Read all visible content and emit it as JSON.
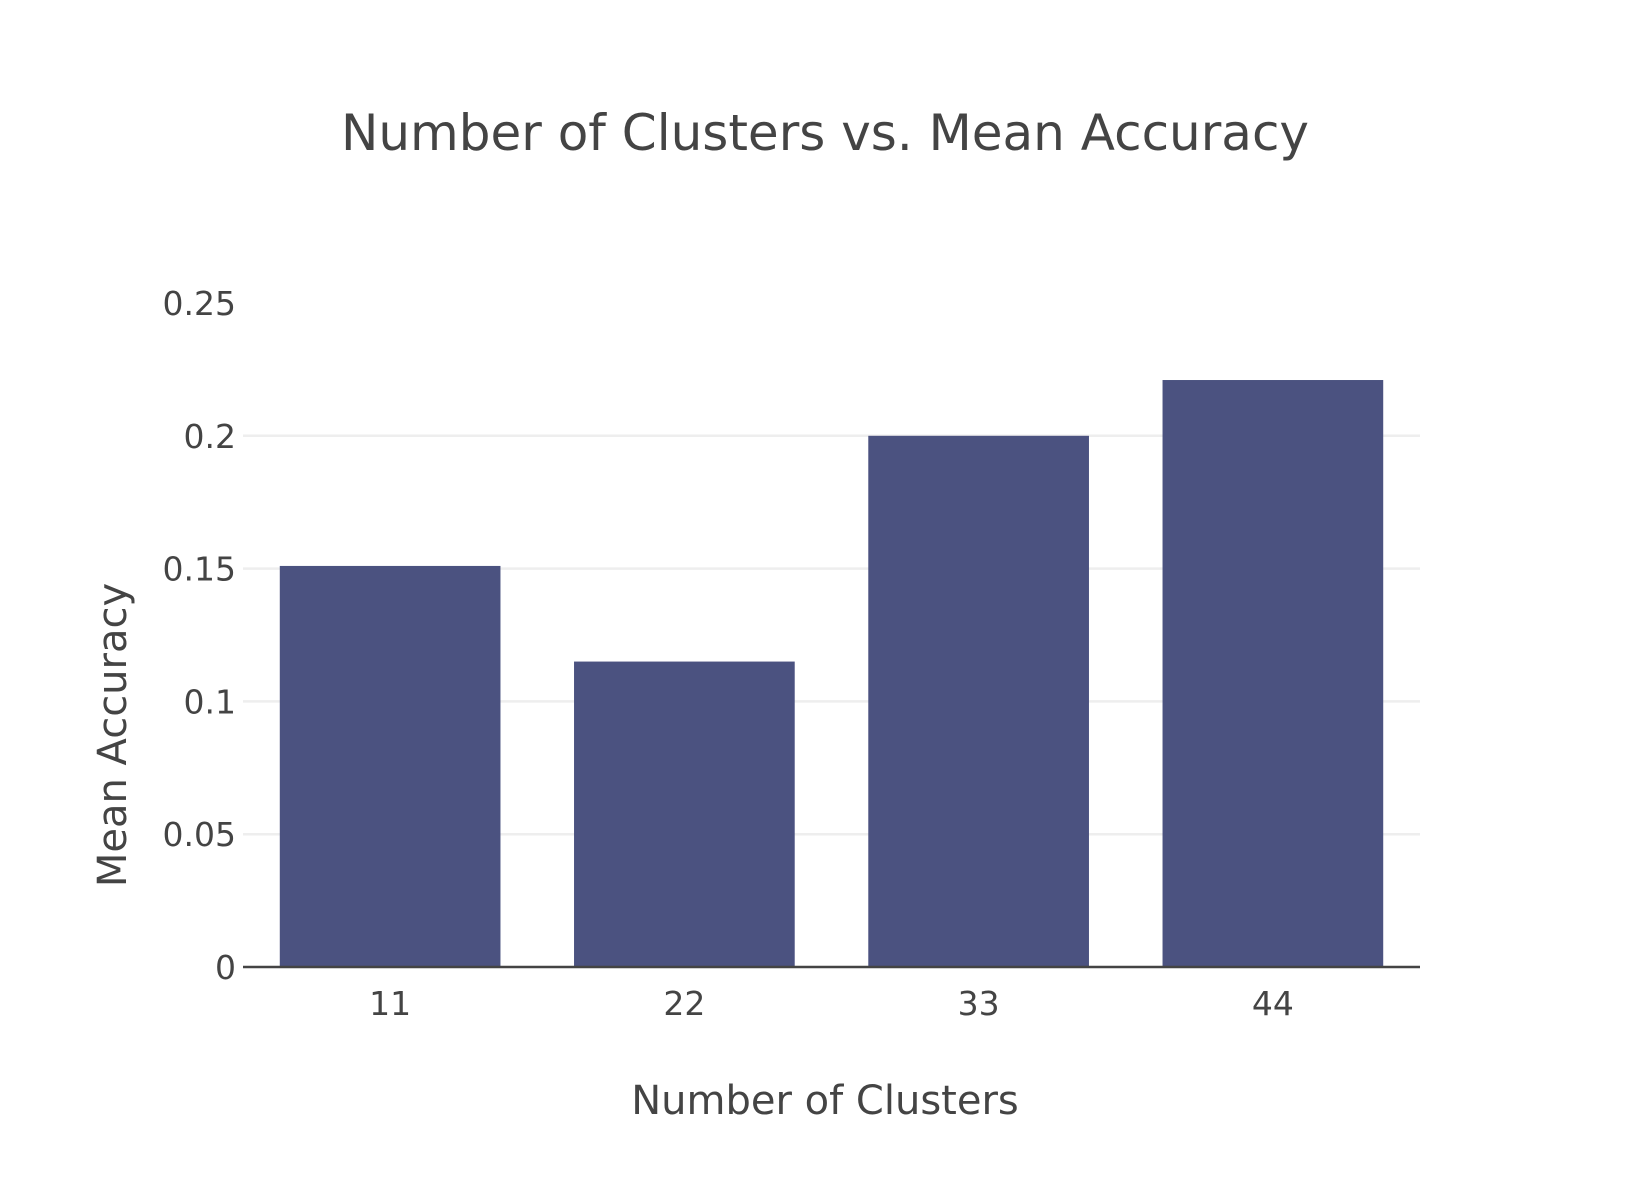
{
  "chart_data": {
    "type": "bar",
    "title": "Number of Clusters vs. Mean Accuracy",
    "xlabel": "Number of Clusters",
    "ylabel": "Mean Accuracy",
    "categories": [
      "11",
      "22",
      "33",
      "44"
    ],
    "values": [
      0.151,
      0.115,
      0.2,
      0.221
    ],
    "ylim": [
      0,
      0.25
    ],
    "yticks": [
      0,
      0.05,
      0.1,
      0.15,
      0.2,
      0.25
    ],
    "ytick_labels": [
      "0",
      "0.05",
      "0.1",
      "0.15",
      "0.2",
      "0.25"
    ],
    "grid": true,
    "legend": false,
    "colors": {
      "bar": "#4b5280",
      "grid": "#eeeeee",
      "axis": "#444444",
      "text": "#444444"
    }
  }
}
